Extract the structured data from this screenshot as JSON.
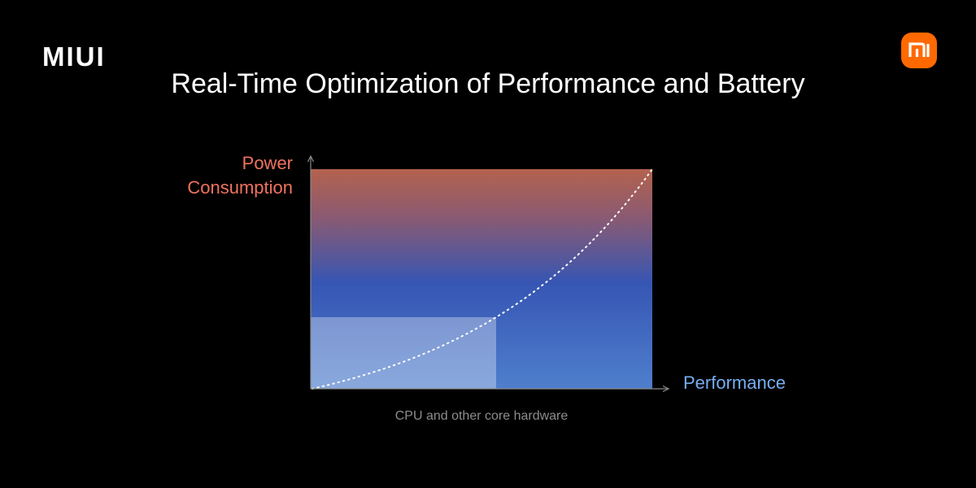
{
  "header": {
    "brand": "MIUI",
    "title": "Real-Time Optimization of Performance and Battery"
  },
  "diagram": {
    "y_axis_label": [
      "Power",
      "Consumption"
    ],
    "x_axis_label": "Performance",
    "caption": "CPU and other core hardware"
  }
}
